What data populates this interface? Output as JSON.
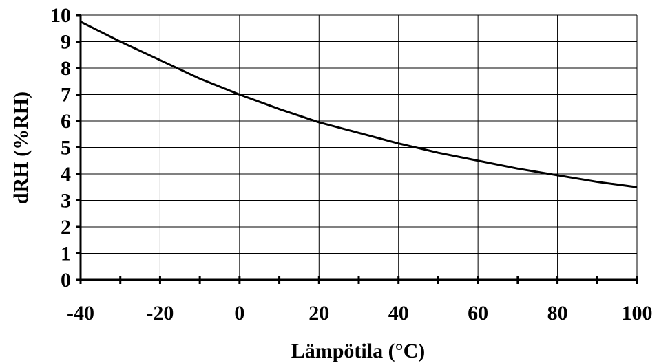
{
  "chart_data": {
    "type": "line",
    "title": "",
    "xlabel": "Lämpötila (°C)",
    "ylabel": "dRH (%RH)",
    "xlim": [
      -40,
      100
    ],
    "ylim": [
      0,
      10
    ],
    "x_ticks": [
      -40,
      -20,
      0,
      20,
      40,
      60,
      80,
      100
    ],
    "x_tick_labels": [
      "-40",
      "-20",
      "0",
      "20",
      "40",
      "60",
      "80",
      "100"
    ],
    "y_ticks": [
      0,
      1,
      2,
      3,
      4,
      5,
      6,
      7,
      8,
      9,
      10
    ],
    "y_tick_labels": [
      "0",
      "1",
      "2",
      "3",
      "4",
      "5",
      "6",
      "7",
      "8",
      "9",
      "10"
    ],
    "grid": true,
    "legend": "none",
    "series": [
      {
        "x": [
          -40,
          -30,
          -20,
          -10,
          0,
          10,
          20,
          30,
          40,
          50,
          60,
          70,
          80,
          90,
          100
        ],
        "y": [
          9.75,
          9.0,
          8.3,
          7.6,
          7.0,
          6.45,
          5.95,
          5.55,
          5.15,
          4.8,
          4.5,
          4.2,
          3.95,
          3.7,
          3.5
        ]
      }
    ]
  }
}
